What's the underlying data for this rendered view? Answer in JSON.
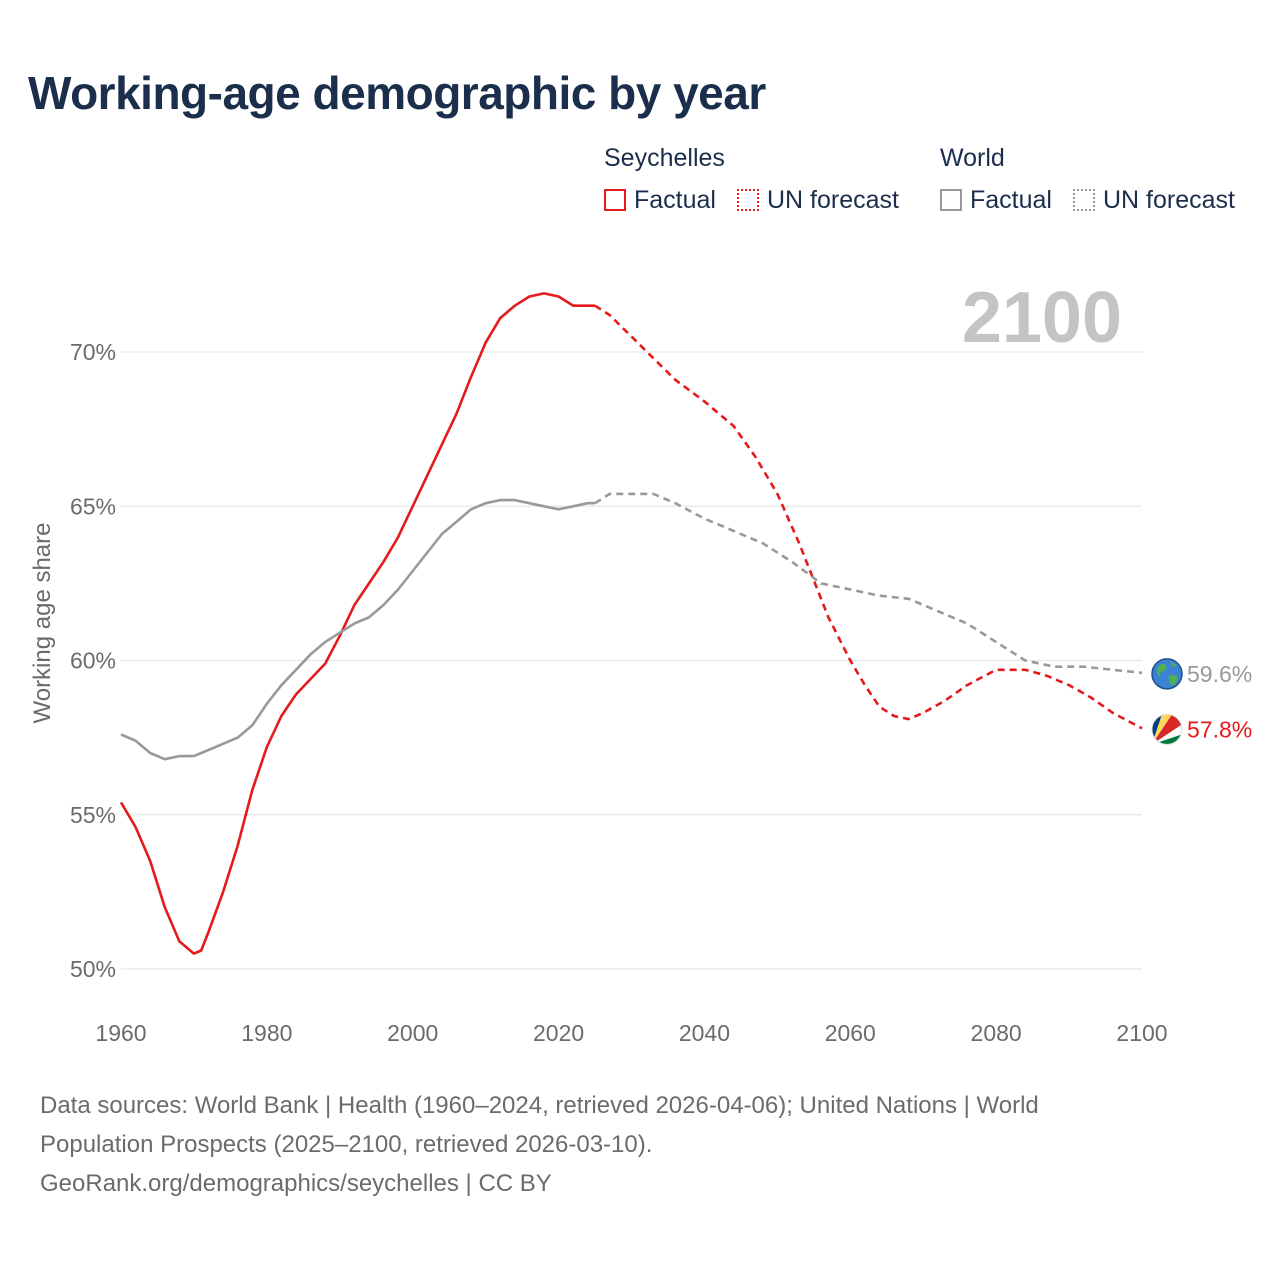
{
  "title": "Working-age demographic by year",
  "legend": {
    "groups": [
      {
        "name": "Seychelles",
        "color": "#e41a1c",
        "items": [
          {
            "label": "Factual",
            "style": "solid"
          },
          {
            "label": "UN forecast",
            "style": "dotted"
          }
        ]
      },
      {
        "name": "World",
        "color": "#999999",
        "items": [
          {
            "label": "Factual",
            "style": "solid"
          },
          {
            "label": "UN forecast",
            "style": "dotted"
          }
        ]
      }
    ]
  },
  "chart_data": {
    "type": "line",
    "title": "Working-age demographic by year",
    "xlabel": "",
    "ylabel": "Working age share",
    "xlim": [
      1960,
      2100
    ],
    "ylim": [
      49.5,
      73
    ],
    "x_ticks": [
      1960,
      1980,
      2000,
      2020,
      2040,
      2060,
      2080,
      2100
    ],
    "x_tick_labels": [
      "1960",
      "1980",
      "2000",
      "2020",
      "2040",
      "2060",
      "2080",
      "2100"
    ],
    "y_ticks": [
      50,
      55,
      60,
      65,
      70
    ],
    "y_tick_labels": [
      "50%",
      "55%",
      "60%",
      "65%",
      "70%"
    ],
    "grid": true,
    "year_label": "2100",
    "forecast_start": 2025,
    "series": [
      {
        "name": "Seychelles",
        "color": "#e41a1c",
        "end_label": "57.8%",
        "icon": "seychelles-flag-icon",
        "points": [
          [
            1960,
            55.4
          ],
          [
            1962,
            54.6
          ],
          [
            1964,
            53.5
          ],
          [
            1966,
            52.0
          ],
          [
            1968,
            50.9
          ],
          [
            1970,
            50.5
          ],
          [
            1971,
            50.6
          ],
          [
            1972,
            51.2
          ],
          [
            1974,
            52.5
          ],
          [
            1976,
            54.0
          ],
          [
            1978,
            55.8
          ],
          [
            1980,
            57.2
          ],
          [
            1982,
            58.2
          ],
          [
            1984,
            58.9
          ],
          [
            1986,
            59.4
          ],
          [
            1988,
            59.9
          ],
          [
            1990,
            60.8
          ],
          [
            1992,
            61.8
          ],
          [
            1994,
            62.5
          ],
          [
            1996,
            63.2
          ],
          [
            1998,
            64.0
          ],
          [
            2000,
            65.0
          ],
          [
            2002,
            66.0
          ],
          [
            2004,
            67.0
          ],
          [
            2006,
            68.0
          ],
          [
            2008,
            69.2
          ],
          [
            2010,
            70.3
          ],
          [
            2012,
            71.1
          ],
          [
            2014,
            71.5
          ],
          [
            2016,
            71.8
          ],
          [
            2018,
            71.9
          ],
          [
            2020,
            71.8
          ],
          [
            2022,
            71.5
          ],
          [
            2025,
            71.5
          ],
          [
            2027,
            71.2
          ],
          [
            2030,
            70.5
          ],
          [
            2033,
            69.8
          ],
          [
            2036,
            69.1
          ],
          [
            2040,
            68.4
          ],
          [
            2044,
            67.6
          ],
          [
            2047,
            66.6
          ],
          [
            2050,
            65.4
          ],
          [
            2053,
            63.8
          ],
          [
            2055,
            62.6
          ],
          [
            2057,
            61.4
          ],
          [
            2060,
            60.0
          ],
          [
            2062,
            59.2
          ],
          [
            2064,
            58.5
          ],
          [
            2066,
            58.2
          ],
          [
            2068,
            58.1
          ],
          [
            2070,
            58.3
          ],
          [
            2073,
            58.7
          ],
          [
            2076,
            59.2
          ],
          [
            2080,
            59.7
          ],
          [
            2084,
            59.7
          ],
          [
            2087,
            59.5
          ],
          [
            2090,
            59.2
          ],
          [
            2093,
            58.8
          ],
          [
            2096,
            58.3
          ],
          [
            2100,
            57.8
          ]
        ]
      },
      {
        "name": "World",
        "color": "#999999",
        "end_label": "59.6%",
        "icon": "globe-icon",
        "points": [
          [
            1960,
            57.6
          ],
          [
            1962,
            57.4
          ],
          [
            1964,
            57.0
          ],
          [
            1966,
            56.8
          ],
          [
            1968,
            56.9
          ],
          [
            1970,
            56.9
          ],
          [
            1972,
            57.1
          ],
          [
            1974,
            57.3
          ],
          [
            1976,
            57.5
          ],
          [
            1978,
            57.9
          ],
          [
            1980,
            58.6
          ],
          [
            1982,
            59.2
          ],
          [
            1984,
            59.7
          ],
          [
            1986,
            60.2
          ],
          [
            1988,
            60.6
          ],
          [
            1990,
            60.9
          ],
          [
            1992,
            61.2
          ],
          [
            1994,
            61.4
          ],
          [
            1996,
            61.8
          ],
          [
            1998,
            62.3
          ],
          [
            2000,
            62.9
          ],
          [
            2002,
            63.5
          ],
          [
            2004,
            64.1
          ],
          [
            2006,
            64.5
          ],
          [
            2008,
            64.9
          ],
          [
            2010,
            65.1
          ],
          [
            2012,
            65.2
          ],
          [
            2014,
            65.2
          ],
          [
            2016,
            65.1
          ],
          [
            2018,
            65.0
          ],
          [
            2020,
            64.9
          ],
          [
            2022,
            65.0
          ],
          [
            2024,
            65.1
          ],
          [
            2025,
            65.1
          ],
          [
            2027,
            65.4
          ],
          [
            2030,
            65.4
          ],
          [
            2033,
            65.4
          ],
          [
            2036,
            65.1
          ],
          [
            2040,
            64.6
          ],
          [
            2044,
            64.2
          ],
          [
            2048,
            63.8
          ],
          [
            2052,
            63.2
          ],
          [
            2056,
            62.5
          ],
          [
            2060,
            62.3
          ],
          [
            2064,
            62.1
          ],
          [
            2068,
            62.0
          ],
          [
            2072,
            61.6
          ],
          [
            2076,
            61.2
          ],
          [
            2080,
            60.6
          ],
          [
            2084,
            60.0
          ],
          [
            2088,
            59.8
          ],
          [
            2092,
            59.8
          ],
          [
            2096,
            59.7
          ],
          [
            2100,
            59.6
          ]
        ]
      }
    ]
  },
  "sources": {
    "line1": "Data sources: World Bank | Health (1960–2024, retrieved 2026-04-06); United Nations | World",
    "line2": "Population Prospects (2025–2100, retrieved 2026-03-10).",
    "line3": "GeoRank.org/demographics/seychelles | CC BY"
  }
}
